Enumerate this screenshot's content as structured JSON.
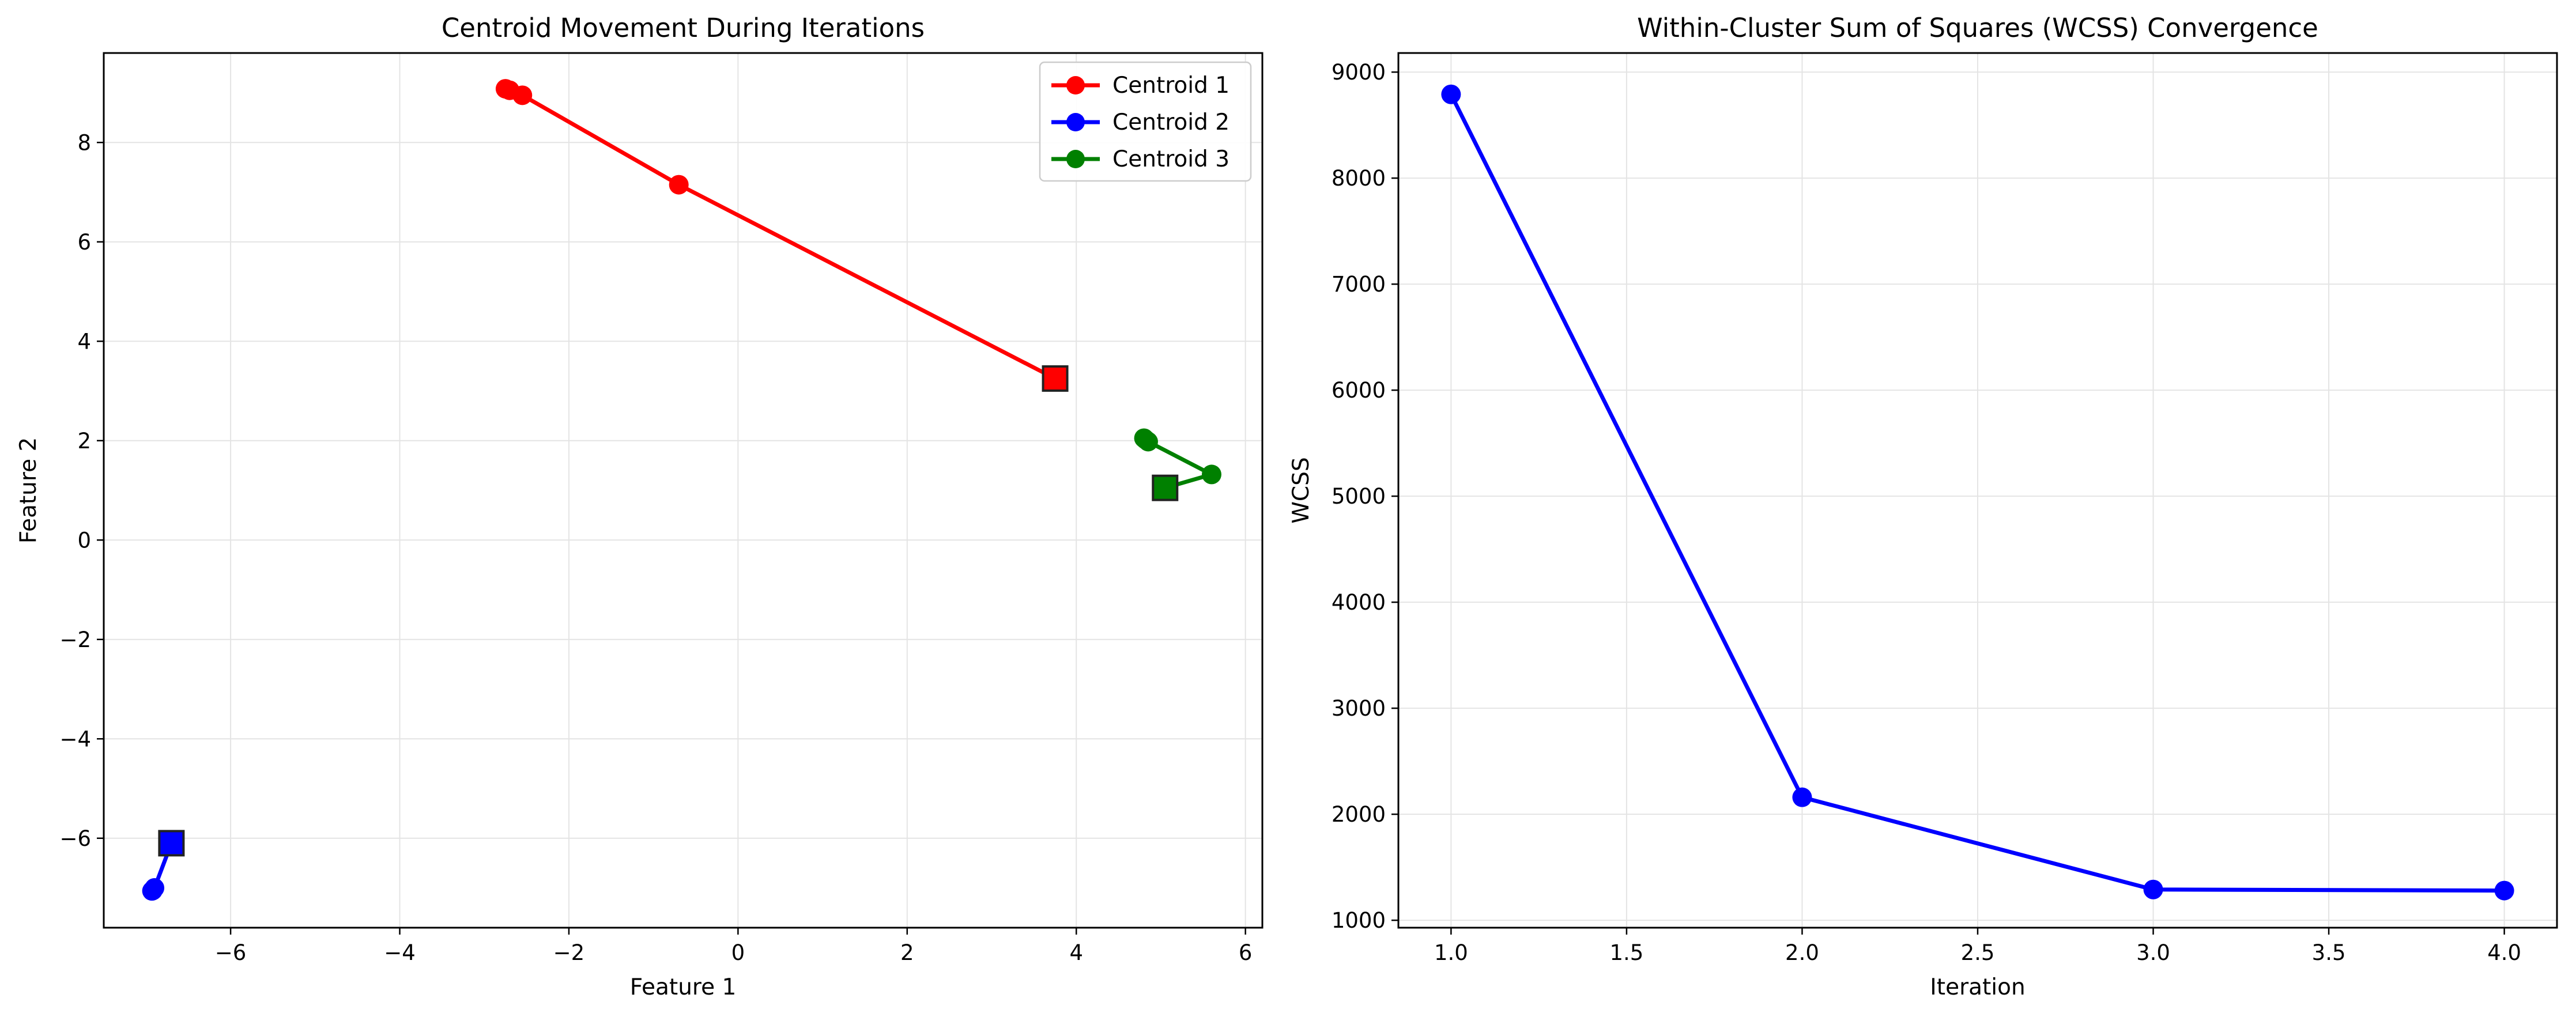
{
  "chart_data": [
    {
      "type": "line",
      "title": "Centroid Movement During Iterations",
      "xlabel": "Feature 1",
      "ylabel": "Feature 2",
      "xlim": [
        -7.5,
        6.2
      ],
      "ylim": [
        -7.8,
        9.8
      ],
      "xticks": [
        -6,
        -4,
        -2,
        0,
        2,
        4,
        6
      ],
      "yticks": [
        -6,
        -4,
        -2,
        0,
        2,
        4,
        6,
        8
      ],
      "xtick_labels": [
        "−6",
        "−4",
        "−2",
        "0",
        "2",
        "4",
        "6"
      ],
      "ytick_labels": [
        "−6",
        "−4",
        "−2",
        "0",
        "2",
        "4",
        "6",
        "8"
      ],
      "grid": true,
      "legend_position": "top-right",
      "series": [
        {
          "name": "Centroid 1",
          "color": "#ff0000",
          "points": [
            [
              3.75,
              3.25
            ],
            [
              -0.7,
              7.15
            ],
            [
              -2.55,
              8.95
            ],
            [
              -2.7,
              9.05
            ],
            [
              -2.75,
              9.08
            ]
          ],
          "final": [
            3.75,
            3.25
          ]
        },
        {
          "name": "Centroid 2",
          "color": "#0000ff",
          "points": [
            [
              -6.7,
              -6.1
            ],
            [
              -6.9,
              -7.0
            ],
            [
              -6.92,
              -7.05
            ],
            [
              -6.93,
              -7.06
            ]
          ],
          "final": [
            -6.7,
            -6.1
          ]
        },
        {
          "name": "Centroid 3",
          "color": "#008000",
          "points": [
            [
              5.05,
              1.05
            ],
            [
              5.6,
              1.32
            ],
            [
              4.85,
              1.98
            ],
            [
              4.82,
              2.02
            ],
            [
              4.8,
              2.05
            ]
          ],
          "final": [
            5.05,
            1.05
          ]
        }
      ]
    },
    {
      "type": "line",
      "title": "Within-Cluster Sum of Squares (WCSS) Convergence",
      "xlabel": "Iteration",
      "ylabel": "WCSS",
      "xlim": [
        0.85,
        4.15
      ],
      "ylim": [
        930,
        9180
      ],
      "xticks": [
        1.0,
        1.5,
        2.0,
        2.5,
        3.0,
        3.5,
        4.0
      ],
      "yticks": [
        1000,
        2000,
        3000,
        4000,
        5000,
        6000,
        7000,
        8000,
        9000
      ],
      "xtick_labels": [
        "1.0",
        "1.5",
        "2.0",
        "2.5",
        "3.0",
        "3.5",
        "4.0"
      ],
      "ytick_labels": [
        "1000",
        "2000",
        "3000",
        "4000",
        "5000",
        "6000",
        "7000",
        "8000",
        "9000"
      ],
      "grid": true,
      "series": [
        {
          "color": "#0000ff",
          "x": [
            1,
            2,
            3,
            4
          ],
          "values": [
            8790,
            2160,
            1290,
            1280
          ]
        }
      ]
    }
  ]
}
